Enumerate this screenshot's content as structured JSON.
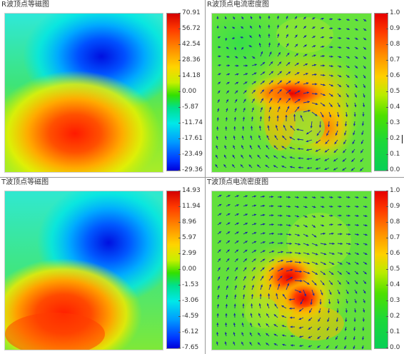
{
  "panels": {
    "r_contour": {
      "title": "R波顶点等磁图",
      "scale": [
        "70.91",
        "56.72",
        "42.54",
        "28.36",
        "14.18",
        "0.00",
        "-5.87",
        "-11.74",
        "-17.61",
        "-23.49",
        "-29.36"
      ]
    },
    "r_current": {
      "title": "R波顶点电流密度图",
      "scale": [
        "1.0",
        "0.9",
        "0.8",
        "0.7",
        "0.6",
        "0.5",
        "0.4",
        "0.3",
        "0.2",
        "0.1",
        "0.0"
      ]
    },
    "t_contour": {
      "title": "T波顶点等磁图",
      "scale": [
        "14.93",
        "11.94",
        "8.96",
        "5.97",
        "2.99",
        "0.00",
        "-1.53",
        "-3.06",
        "-4.59",
        "-6.12",
        "-7.65"
      ]
    },
    "t_current": {
      "title": "T波顶点电流密度图",
      "scale": [
        "1.0",
        "0.9",
        "0.8",
        "0.7",
        "0.6",
        "0.5",
        "0.4",
        "0.3",
        "0.2",
        "0.1",
        "0.0"
      ]
    }
  },
  "colors": {
    "map_background": "#7ee868",
    "positive_peak": "#ff1e00",
    "negative_peak": "#0018e6",
    "arrow": "#1a2aa0"
  }
}
